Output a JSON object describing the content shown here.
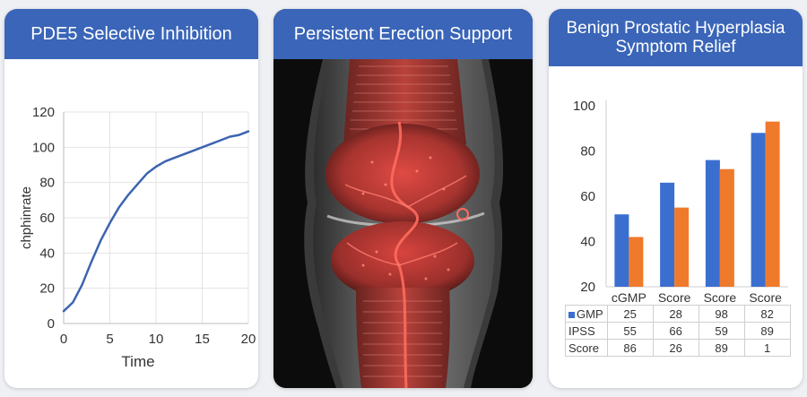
{
  "panels": [
    {
      "title": "PDE5 Selective Inhibition"
    },
    {
      "title": "Persistent Erection Support"
    },
    {
      "title_lines": [
        "Benign Prostatic Hyperplasia",
        "Symptom Relief"
      ]
    }
  ],
  "colors": {
    "header": "#3a65b8",
    "line": "#3c64b0",
    "series_blue": "#3a6fd0",
    "series_orange": "#f07a2c"
  },
  "chart_data": [
    {
      "type": "line",
      "xlabel": "Time",
      "ylabel": "chphinrate",
      "xlim": [
        0,
        20
      ],
      "ylim": [
        0,
        120
      ],
      "xticks": [
        0,
        5,
        10,
        15,
        20
      ],
      "yticks": [
        0,
        20,
        40,
        60,
        80,
        100,
        120
      ],
      "grid": true,
      "x": [
        0,
        1,
        2,
        3,
        4,
        5,
        6,
        7,
        8,
        9,
        10,
        11,
        12,
        13,
        14,
        15,
        16,
        17,
        18,
        19,
        20
      ],
      "y": [
        7,
        12,
        22,
        35,
        47,
        57,
        66,
        73,
        79,
        85,
        89,
        92,
        94,
        96,
        98,
        100,
        102,
        104,
        106,
        107,
        109
      ]
    },
    {
      "type": "bar",
      "categories": [
        "cGMP",
        "Score",
        "Score",
        "Score"
      ],
      "ylim": [
        20,
        100
      ],
      "yticks": [
        20,
        40,
        60,
        80,
        100
      ],
      "grid": false,
      "series": [
        {
          "values": [
            52,
            66,
            76,
            88
          ]
        },
        {
          "values": [
            42,
            55,
            72,
            93
          ]
        }
      ],
      "table": {
        "rows": [
          {
            "label": "GMP",
            "values": [
              "25",
              "28",
              "98",
              "82"
            ]
          },
          {
            "label": "IPSS",
            "values": [
              "55",
              "66",
              "59",
              "89"
            ]
          },
          {
            "label": "Score",
            "values": [
              "86",
              "26",
              "89",
              "1"
            ]
          }
        ]
      }
    }
  ]
}
